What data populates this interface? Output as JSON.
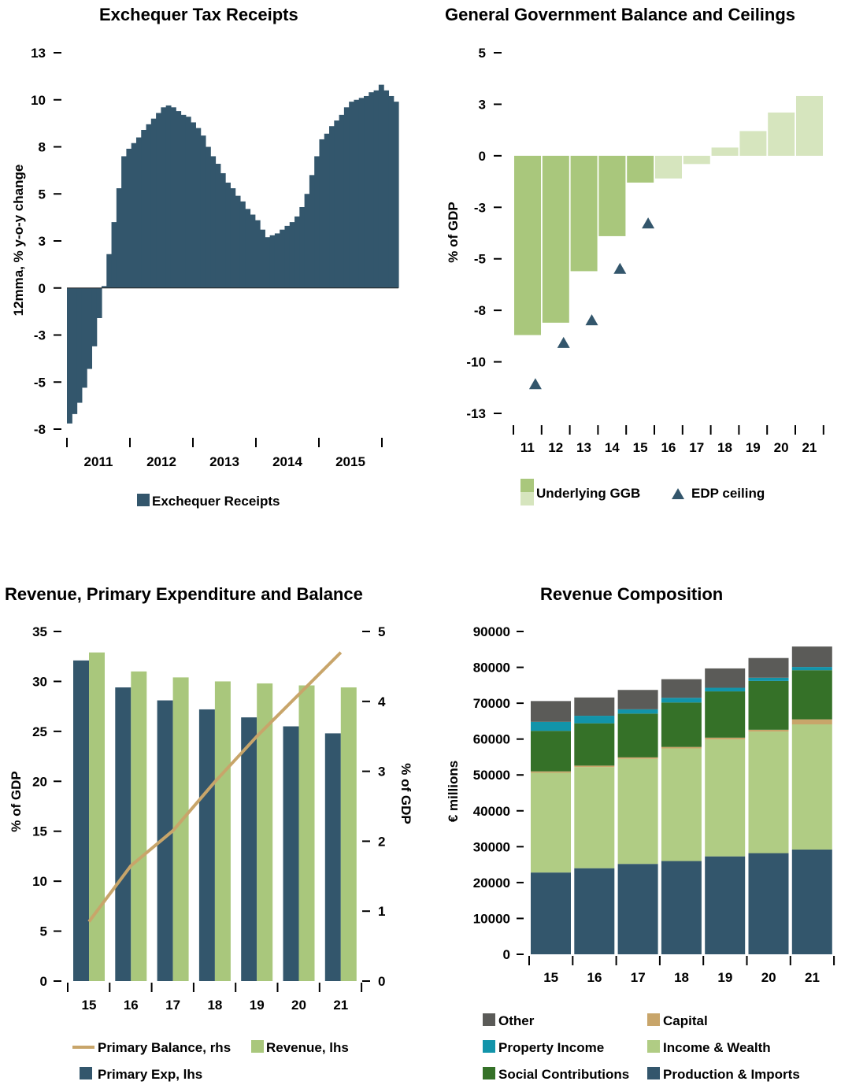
{
  "chart_data": [
    {
      "type": "bar",
      "title": "Exchequer Tax Receipts",
      "ylabel": "12mma, % y-o-y change",
      "xlabel": "",
      "ylim": [
        -8,
        13
      ],
      "y_ticks": [
        "13",
        "10",
        "8",
        "5",
        "3",
        "0",
        "-3",
        "-5",
        "-8"
      ],
      "y_tick_values": [
        12.5,
        10,
        7.5,
        5,
        2.5,
        0,
        -2.5,
        -5,
        -7.5
      ],
      "year_labels": [
        "2011",
        "2012",
        "2013",
        "2014",
        "2015"
      ],
      "series": [
        {
          "name": "Exchequer Receipts",
          "values": [
            -7.2,
            -6.7,
            -6.1,
            -5.3,
            -4.3,
            -3.1,
            -1.6,
            0.1,
            1.8,
            3.5,
            5.3,
            7.0,
            7.4,
            7.7,
            8.0,
            8.4,
            8.7,
            9.0,
            9.3,
            9.6,
            9.7,
            9.6,
            9.4,
            9.2,
            9.1,
            8.8,
            8.5,
            8.1,
            7.5,
            7.0,
            6.6,
            6.1,
            5.6,
            5.3,
            4.9,
            4.6,
            4.2,
            3.9,
            3.6,
            3.1,
            2.7,
            2.8,
            2.9,
            3.1,
            3.3,
            3.5,
            3.8,
            4.3,
            5.0,
            6.0,
            7.0,
            7.9,
            8.2,
            8.6,
            8.9,
            9.2,
            9.6,
            9.9,
            10.0,
            10.1,
            10.2,
            10.4,
            10.5,
            10.8,
            10.5,
            10.2,
            9.9
          ]
        }
      ]
    },
    {
      "type": "bar",
      "title": "General Government Balance and Ceilings",
      "ylabel": "% of GDP",
      "xlabel": "",
      "ylim": [
        -13,
        5
      ],
      "y_ticks": [
        "5",
        "3",
        "0",
        "-3",
        "-5",
        "-8",
        "-10",
        "-13"
      ],
      "y_tick_values": [
        5,
        2.5,
        0,
        -2.5,
        -5,
        -7.5,
        -10,
        -12.5
      ],
      "categories": [
        "11",
        "12",
        "13",
        "14",
        "15",
        "16",
        "17",
        "18",
        "19",
        "20",
        "21"
      ],
      "series": [
        {
          "name": "Underlying GGB",
          "values": [
            -8.7,
            -8.1,
            -5.6,
            -3.9,
            -1.3,
            -1.1,
            -0.4,
            0.4,
            1.2,
            2.1,
            2.9
          ],
          "shade": [
            "dark",
            "dark",
            "dark",
            "dark",
            "dark",
            "light",
            "light",
            "light",
            "light",
            "light",
            "light"
          ]
        },
        {
          "name": "EDP ceiling",
          "values": [
            -10.6,
            -8.6,
            -7.5,
            -5.0,
            -2.8,
            null,
            null,
            null,
            null,
            null,
            null
          ]
        }
      ],
      "legend_position": "bottom"
    },
    {
      "type": "bar",
      "title": "Revenue, Primary Expenditure and Balance",
      "ylabel": "% of GDP",
      "y2label": "% of GDP",
      "xlabel": "",
      "ylim": [
        0,
        35
      ],
      "y2lim": [
        0,
        5
      ],
      "y_ticks": [
        "35",
        "30",
        "25",
        "20",
        "15",
        "10",
        "5",
        "0"
      ],
      "y_tick_values": [
        35,
        30,
        25,
        20,
        15,
        10,
        5,
        0
      ],
      "y2_ticks": [
        "5",
        "4",
        "3",
        "2",
        "1",
        "0"
      ],
      "y2_tick_values": [
        5,
        4,
        3,
        2,
        1,
        0
      ],
      "categories": [
        "15",
        "16",
        "17",
        "18",
        "19",
        "20",
        "21"
      ],
      "series": [
        {
          "name": "Primary Exp, lhs",
          "axis": "lhs",
          "values": [
            32.1,
            29.4,
            28.1,
            27.2,
            26.4,
            25.5,
            24.8
          ]
        },
        {
          "name": "Revenue, lhs",
          "axis": "lhs",
          "values": [
            32.9,
            31.0,
            30.4,
            30.0,
            29.8,
            29.6,
            29.4
          ]
        },
        {
          "name": "Primary Balance, rhs",
          "axis": "rhs",
          "type": "line",
          "values": [
            0.85,
            1.65,
            2.15,
            2.85,
            3.5,
            4.1,
            4.7
          ]
        }
      ],
      "legend_position": "bottom"
    },
    {
      "type": "bar",
      "stacked": true,
      "title": "Revenue Composition",
      "ylabel": "€ millions",
      "xlabel": "",
      "ylim": [
        0,
        90000
      ],
      "y_ticks": [
        "90000",
        "80000",
        "70000",
        "60000",
        "50000",
        "40000",
        "30000",
        "20000",
        "10000",
        "0"
      ],
      "y_tick_values": [
        90000,
        80000,
        70000,
        60000,
        50000,
        40000,
        30000,
        20000,
        10000,
        0
      ],
      "categories": [
        "15",
        "16",
        "17",
        "18",
        "19",
        "20",
        "21"
      ],
      "series": [
        {
          "name": "Production & Imports",
          "values": [
            22800,
            24000,
            25200,
            26000,
            27300,
            28200,
            29200
          ]
        },
        {
          "name": "Income & Wealth",
          "values": [
            27800,
            28200,
            29300,
            31400,
            32600,
            33900,
            34900
          ]
        },
        {
          "name": "Capital",
          "values": [
            400,
            400,
            400,
            400,
            500,
            500,
            1400
          ]
        },
        {
          "name": "Social Contributions",
          "values": [
            11300,
            11800,
            12200,
            12400,
            12900,
            13600,
            13700
          ]
        },
        {
          "name": "Property Income",
          "values": [
            2500,
            2100,
            1200,
            1300,
            1000,
            900,
            900
          ]
        },
        {
          "name": "Other",
          "values": [
            5800,
            5100,
            5400,
            5200,
            5400,
            5500,
            5700
          ]
        }
      ],
      "legend_position": "bottom"
    }
  ],
  "colors": {
    "navy": "#33566c",
    "green_dark": "#a9c77c",
    "green_light": "#d6e5be",
    "revenue_green": "#a9c77c",
    "line_tan": "#c8a56a",
    "social": "#357128",
    "income": "#b0cc84",
    "property": "#1294aa",
    "capital": "#c8a56a",
    "other": "#5b5b58",
    "production": "#33566c"
  }
}
